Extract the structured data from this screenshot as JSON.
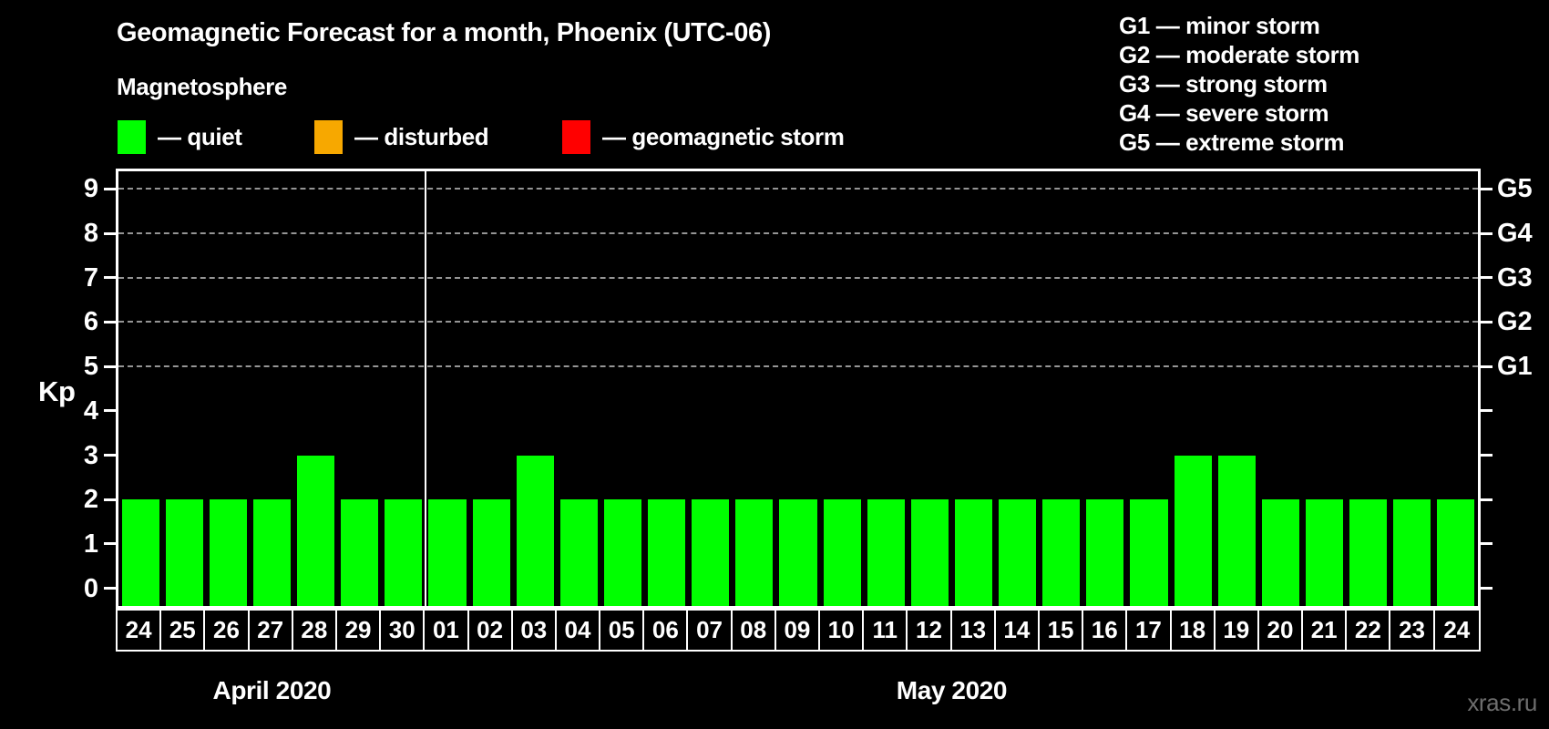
{
  "header": {
    "title": "Geomagnetic Forecast for a month, Phoenix (UTC-06)",
    "subtitle": "Magnetosphere"
  },
  "legend": {
    "items": [
      {
        "key": "quiet",
        "label": "— quiet",
        "color": "#00FF00"
      },
      {
        "key": "disturbed",
        "label": "— disturbed",
        "color": "#F7A800"
      },
      {
        "key": "geomagnetic-storm",
        "label": "— geomagnetic storm",
        "color": "#FF0000"
      }
    ]
  },
  "g_legend": {
    "items": [
      "G1 — minor storm",
      "G2 — moderate storm",
      "G3 — strong storm",
      "G4 — severe storm",
      "G5 — extreme storm"
    ]
  },
  "axes": {
    "left_label": "Kp",
    "left_ticks": [
      0,
      1,
      2,
      3,
      4,
      5,
      6,
      7,
      8,
      9
    ],
    "right_labels": [
      {
        "at": 9,
        "label": "G5"
      },
      {
        "at": 8,
        "label": "G4"
      },
      {
        "at": 7,
        "label": "G3"
      },
      {
        "at": 6,
        "label": "G2"
      },
      {
        "at": 5,
        "label": "G1"
      }
    ]
  },
  "footer": {
    "watermark": "xras.ru"
  },
  "colors": {
    "background": "#000000",
    "axis": "#FFFFFF",
    "grid": "#959595",
    "quiet": "#00FF00",
    "disturbed": "#F7A800",
    "storm": "#FF0000",
    "watermark_text": "#6E6E6E"
  },
  "chart_data": {
    "type": "bar",
    "title": "Geomagnetic Forecast for a month, Phoenix (UTC-06)",
    "xlabel": "",
    "ylabel": "Kp",
    "ylim": [
      -0.4,
      9.4
    ],
    "y_ticks": [
      0,
      1,
      2,
      3,
      4,
      5,
      6,
      7,
      8,
      9
    ],
    "grid_levels": [
      5,
      6,
      7,
      8,
      9
    ],
    "grid_style": "dashed horizontal gridlines only at Kp 5-9 (G1-G5 levels)",
    "legend_position": "top-left",
    "bar_status_all": "quiet",
    "bar_color": "#00FF00",
    "months": [
      {
        "label": "April 2020",
        "days": [
          "24",
          "25",
          "26",
          "27",
          "28",
          "29",
          "30"
        ],
        "values": [
          2,
          2,
          2,
          2,
          3,
          2,
          2
        ]
      },
      {
        "label": "May 2020",
        "days": [
          "01",
          "02",
          "03",
          "04",
          "05",
          "06",
          "07",
          "08",
          "09",
          "10",
          "11",
          "12",
          "13",
          "14",
          "15",
          "16",
          "17",
          "18",
          "19",
          "20",
          "21",
          "22",
          "23",
          "24"
        ],
        "values": [
          2,
          2,
          3,
          2,
          2,
          2,
          2,
          2,
          2,
          2,
          2,
          2,
          2,
          2,
          2,
          2,
          2,
          3,
          3,
          2,
          2,
          2,
          2,
          2
        ]
      }
    ],
    "right_axis": [
      {
        "kp": 9,
        "label": "G5"
      },
      {
        "kp": 8,
        "label": "G4"
      },
      {
        "kp": 7,
        "label": "G3"
      },
      {
        "kp": 6,
        "label": "G2"
      },
      {
        "kp": 5,
        "label": "G1"
      }
    ]
  }
}
